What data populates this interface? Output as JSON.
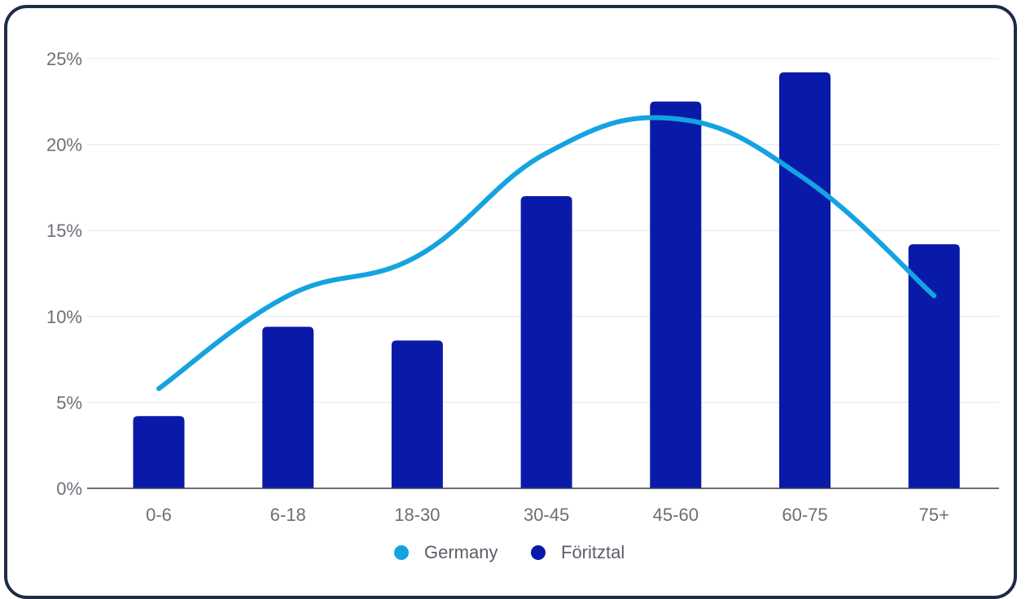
{
  "chart_data": {
    "type": "bar",
    "title": "",
    "xlabel": "",
    "ylabel": "",
    "categories": [
      "0-6",
      "6-18",
      "18-30",
      "30-45",
      "45-60",
      "60-75",
      "75+"
    ],
    "ylim": [
      0,
      25
    ],
    "yticks": [
      0,
      5,
      10,
      15,
      20,
      25
    ],
    "ytick_labels": [
      "0%",
      "5%",
      "10%",
      "15%",
      "20%",
      "25%"
    ],
    "grid": true,
    "legend_position": "bottom-center",
    "series": [
      {
        "name": "Germany",
        "type": "line",
        "smooth": true,
        "color": "#14a3e0",
        "values": [
          5.8,
          11.2,
          13.5,
          19.5,
          21.5,
          18.0,
          11.2
        ]
      },
      {
        "name": "Föritztal",
        "type": "bar",
        "color": "#0a1aa8",
        "values": [
          4.2,
          9.4,
          8.6,
          17.0,
          22.5,
          24.2,
          14.2
        ]
      }
    ]
  }
}
